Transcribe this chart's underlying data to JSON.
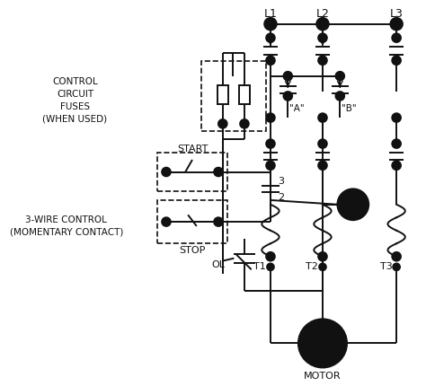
{
  "bg_color": "#ffffff",
  "lc": "#111111",
  "lw": 1.4,
  "fig_w": 4.74,
  "fig_h": 4.3,
  "dpi": 100,
  "xlim": [
    0,
    474
  ],
  "ylim": [
    0,
    430
  ],
  "L1x": 295,
  "L2x": 355,
  "L3x": 440,
  "label_L1": "L1",
  "label_L2": "L2",
  "label_L3": "L3",
  "label_T1": "T1",
  "label_T2": "T2",
  "label_T3": "T3",
  "label_motor": "MOTOR",
  "label_start": "START",
  "label_stop": "STOP",
  "label_3": "3",
  "label_2": "2",
  "label_ol": "OL",
  "label_A": "\"A\"",
  "label_B": "\"B\"",
  "label_control": "CONTROL\nCIRCUIT\nFUSES\n(WHEN USED)",
  "label_3wire": "3-WIRE CONTROL\n(MOMENTARY CONTACT)"
}
